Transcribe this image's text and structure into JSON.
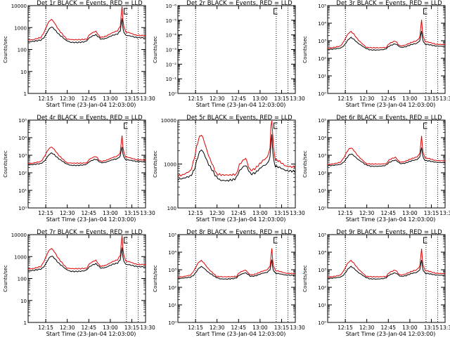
{
  "colors": {
    "events": "#000000",
    "lld": "#e00000",
    "axis": "#000000"
  },
  "chart_data": [
    {
      "type": "line",
      "title": "Det 1r BLACK = Events, RED = LLD",
      "xlabel": "Start Time (23-Jan-04 12:03:00)",
      "ylabel": "Counts/sec",
      "xticks": [
        "12:15",
        "12:30",
        "12:45",
        "13:00",
        "13:15",
        "13:30"
      ],
      "y_scale": "log",
      "ylim": [
        1,
        10000
      ],
      "yticks": [
        "1",
        "10",
        "100",
        "1000",
        "10000"
      ],
      "show_curves": true
    },
    {
      "type": "line",
      "title": "Det 2r BLACK = Events, RED = LLD",
      "xlabel": "Start Time (23-Jan-04 12:03:00)",
      "ylabel": "Counts/sec",
      "xticks": [
        "12:15",
        "12:30",
        "12:45",
        "13:00",
        "13:15",
        "13:30"
      ],
      "y_scale": "log",
      "ylim": [
        1,
        1e-06
      ],
      "yticks": [
        "10⁰",
        "10⁻¹",
        "10⁻²",
        "10⁻³",
        "10⁻⁴",
        "10⁻⁵",
        "10⁻⁶"
      ],
      "show_curves": false
    },
    {
      "type": "line",
      "title": "Det 3r BLACK = Events, RED = LLD",
      "xlabel": "Start Time (23-Jan-04 12:03:00)",
      "ylabel": "Counts/sec",
      "xticks": [
        "12:15",
        "12:30",
        "12:45",
        "13:00",
        "13:15",
        "13:30"
      ],
      "y_scale": "log",
      "ylim": [
        1,
        100000
      ],
      "yticks": [
        "10⁰",
        "10¹",
        "10²",
        "10³",
        "10⁴",
        "10⁵"
      ],
      "show_curves": true
    },
    {
      "type": "line",
      "title": "Det 4r BLACK = Events, RED = LLD",
      "xlabel": "Start Time (23-Jan-04 12:03:00)",
      "ylabel": "Counts/sec",
      "xticks": [
        "12:15",
        "12:30",
        "12:45",
        "13:00",
        "13:15",
        "13:30"
      ],
      "y_scale": "log",
      "ylim": [
        1,
        100000
      ],
      "yticks": [
        "10⁰",
        "10¹",
        "10²",
        "10³",
        "10⁴",
        "10⁵"
      ],
      "show_curves": true
    },
    {
      "type": "line",
      "title": "Det 5r BLACK = Events, RED = LLD",
      "xlabel": "Start Time (23-Jan-04 12:03:00)",
      "ylabel": "Counts/sec",
      "xticks": [
        "12:15",
        "12:30",
        "12:45",
        "13:00",
        "13:15",
        "13:30"
      ],
      "y_scale": "log",
      "ylim": [
        100,
        10000
      ],
      "yticks": [
        "100",
        "1000",
        "10000"
      ],
      "show_curves": true
    },
    {
      "type": "line",
      "title": "Det 6r BLACK = Events, RED = LLD",
      "xlabel": "Start Time (23-Jan-04 12:03:00)",
      "ylabel": "Counts/sec",
      "xticks": [
        "12:15",
        "12:30",
        "12:45",
        "13:00",
        "13:15",
        "13:30"
      ],
      "y_scale": "log",
      "ylim": [
        1,
        100000
      ],
      "yticks": [
        "10⁰",
        "10¹",
        "10²",
        "10³",
        "10⁴",
        "10⁵"
      ],
      "show_curves": true
    },
    {
      "type": "line",
      "title": "Det 7r BLACK = Events, RED = LLD",
      "xlabel": "Start Time (23-Jan-04 12:03:00)",
      "ylabel": "Counts/sec",
      "xticks": [
        "12:15",
        "12:30",
        "12:45",
        "13:00",
        "13:15",
        "13:30"
      ],
      "y_scale": "log",
      "ylim": [
        1,
        10000
      ],
      "yticks": [
        "1",
        "10",
        "100",
        "1000",
        "10000"
      ],
      "show_curves": true
    },
    {
      "type": "line",
      "title": "Det 8r BLACK = Events, RED = LLD",
      "xlabel": "Start Time (23-Jan-04 12:03:00)",
      "ylabel": "Counts/sec",
      "xticks": [
        "12:15",
        "12:30",
        "12:45",
        "13:00",
        "13:15",
        "13:30"
      ],
      "y_scale": "log",
      "ylim": [
        1,
        100000
      ],
      "yticks": [
        "10⁰",
        "10¹",
        "10²",
        "10³",
        "10⁴",
        "10⁵"
      ],
      "show_curves": true
    },
    {
      "type": "line",
      "title": "Det 9r BLACK = Events, RED = LLD",
      "xlabel": "Start Time (23-Jan-04 12:03:00)",
      "ylabel": "Counts/sec",
      "xticks": [
        "12:15",
        "12:30",
        "12:45",
        "13:00",
        "13:15",
        "13:30"
      ],
      "y_scale": "log",
      "ylim": [
        1,
        100000
      ],
      "yticks": [
        "10⁰",
        "10¹",
        "10²",
        "10³",
        "10⁴",
        "10⁵"
      ],
      "show_curves": true
    }
  ]
}
